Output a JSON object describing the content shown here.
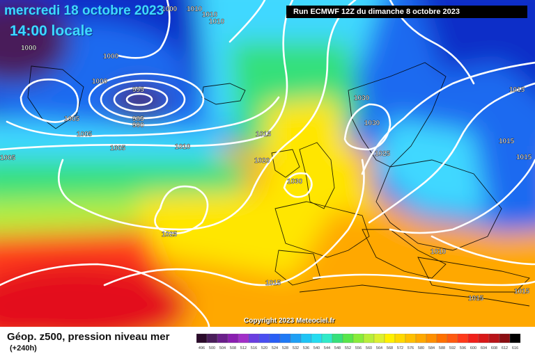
{
  "header": {
    "date_label": "mercredi 18 octobre 2023",
    "time_label": "14:00 locale",
    "run_label": "Run ECMWF 12Z du dimanche 8 octobre 2023"
  },
  "footer": {
    "title": "Géop. z500, pression niveau mer",
    "lead_time": "(+240h)",
    "copyright": "Copyright 2023 Meteociel.fr"
  },
  "colors": {
    "low_core": "#4a1e5a",
    "ocean_north_dark": "#0f2fc8",
    "ocean_north_blue": "#1e6af0",
    "cyan": "#3fd8ff",
    "green": "#36e07a",
    "lime": "#b8ee3a",
    "yellow": "#ffe600",
    "orange": "#ffa800",
    "red": "#ff3a1a",
    "deep_red": "#e3101a",
    "isobar": "#ffffff",
    "coastline": "#000000"
  },
  "legend": {
    "labels": [
      "496",
      "500",
      "504",
      "508",
      "512",
      "516",
      "520",
      "524",
      "528",
      "532",
      "536",
      "540",
      "544",
      "548",
      "552",
      "556",
      "560",
      "564",
      "568",
      "572",
      "576",
      "580",
      "584",
      "588",
      "592",
      "596",
      "600",
      "604",
      "608",
      "612",
      "616"
    ],
    "colors": [
      "#2b0b2b",
      "#4a1e5a",
      "#6a1f8a",
      "#8a1fb0",
      "#a22fc8",
      "#6a3ee0",
      "#4a4ef0",
      "#2a5ef5",
      "#1f7af5",
      "#1fa0f5",
      "#1fc4f5",
      "#25dcf0",
      "#30eac8",
      "#36e07a",
      "#58e64a",
      "#88ec3a",
      "#b8ee3a",
      "#dcf030",
      "#fff000",
      "#ffd800",
      "#ffbf00",
      "#ffa800",
      "#ff8f00",
      "#ff7000",
      "#ff5a10",
      "#ff3a1a",
      "#f0201a",
      "#d81818",
      "#b81418",
      "#8a0e12",
      "#000000"
    ]
  },
  "isobar_labels": [
    {
      "text": "1000"
    },
    {
      "text": "1010"
    },
    {
      "text": "1010"
    },
    {
      "text": "1010"
    },
    {
      "text": "1000"
    },
    {
      "text": "1000"
    },
    {
      "text": "1000"
    },
    {
      "text": "995"
    },
    {
      "text": "985"
    },
    {
      "text": "990"
    },
    {
      "text": "1005"
    },
    {
      "text": "1005"
    },
    {
      "text": "1005"
    },
    {
      "text": "1005"
    },
    {
      "text": "1010"
    },
    {
      "text": "1015"
    },
    {
      "text": "1020"
    },
    {
      "text": "1030"
    },
    {
      "text": "1030"
    },
    {
      "text": "1030"
    },
    {
      "text": "1025"
    },
    {
      "text": "1025"
    },
    {
      "text": "1015"
    },
    {
      "text": "1015"
    },
    {
      "text": "1010"
    },
    {
      "text": "1015"
    },
    {
      "text": "1015"
    },
    {
      "text": "1015"
    },
    {
      "text": "1015"
    },
    {
      "text": "1025"
    }
  ]
}
